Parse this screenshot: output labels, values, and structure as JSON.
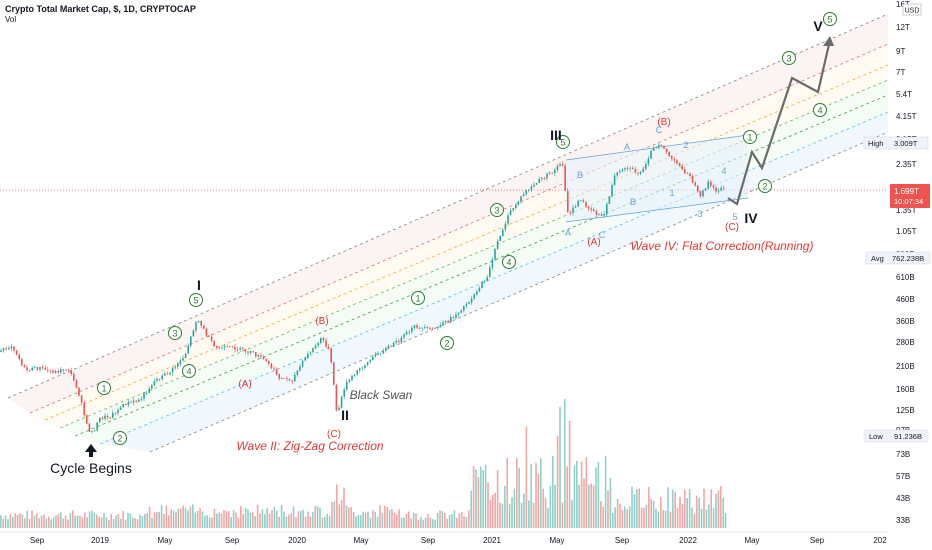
{
  "header": {
    "title": "Crypto Total Market Cap, $, 1D, CRYPTOCAP",
    "volume_label": "Vol"
  },
  "chart_data": {
    "type": "line",
    "y_scale": "log",
    "currency_label": "USD",
    "x_ticks": [
      "Sep",
      "2019",
      "May",
      "Sep",
      "2020",
      "May",
      "Sep",
      "2021",
      "May",
      "Sep",
      "2022",
      "May",
      "Sep",
      "202"
    ],
    "y_ticks": [
      "16T",
      "12T",
      "9T",
      "7T",
      "5.4T",
      "4.15T",
      "3.15T",
      "2.35T",
      "1.35T",
      "1.05T",
      "810B",
      "610B",
      "460B",
      "360B",
      "280B",
      "210B",
      "160B",
      "125B",
      "97B",
      "73B",
      "57B",
      "43B",
      "33B"
    ],
    "badges": [
      {
        "label": "High",
        "value": "3.009T"
      },
      {
        "label": "",
        "value": "1.699T",
        "sub": "10:07:34"
      },
      {
        "label": "Avg",
        "value": "762.238B"
      },
      {
        "label": "Low",
        "value": "91.236B"
      }
    ],
    "colors": {
      "up": "#26a69a",
      "down": "#ef5350",
      "annotation_red": "#e53935",
      "wave_green": "#2e7d32",
      "flat_blue": "#64a3d8"
    },
    "waves": {
      "I": "I",
      "II": "II",
      "III": "III",
      "IV": "IV",
      "V": "V"
    },
    "sub_waves_circled": [
      "1",
      "2",
      "3",
      "4",
      "5"
    ],
    "correction_labels": [
      "(A)",
      "(B)",
      "(C)"
    ],
    "flat_labels": [
      "A",
      "B",
      "C",
      "1",
      "2",
      "3",
      "4",
      "5"
    ],
    "annotations": {
      "cycle": "Cycle Begins",
      "black_swan": "Black Swan",
      "wave2": "Wave II: Zig-Zag Correction",
      "wave4": "Wave IV: Flat Correction(Running)"
    },
    "key_points": [
      {
        "date": "2018-08",
        "value": 230
      },
      {
        "date": "2018-12",
        "value": 105
      },
      {
        "date": "2019-06",
        "value": 380
      },
      {
        "date": "2020-03",
        "value": 125
      },
      {
        "date": "2021-05",
        "value": 2500
      },
      {
        "date": "2021-07",
        "value": 1200
      },
      {
        "date": "2021-11",
        "value": 3000
      },
      {
        "date": "2022-01",
        "value": 1550
      },
      {
        "date": "2022-03",
        "value": 1700
      }
    ]
  }
}
